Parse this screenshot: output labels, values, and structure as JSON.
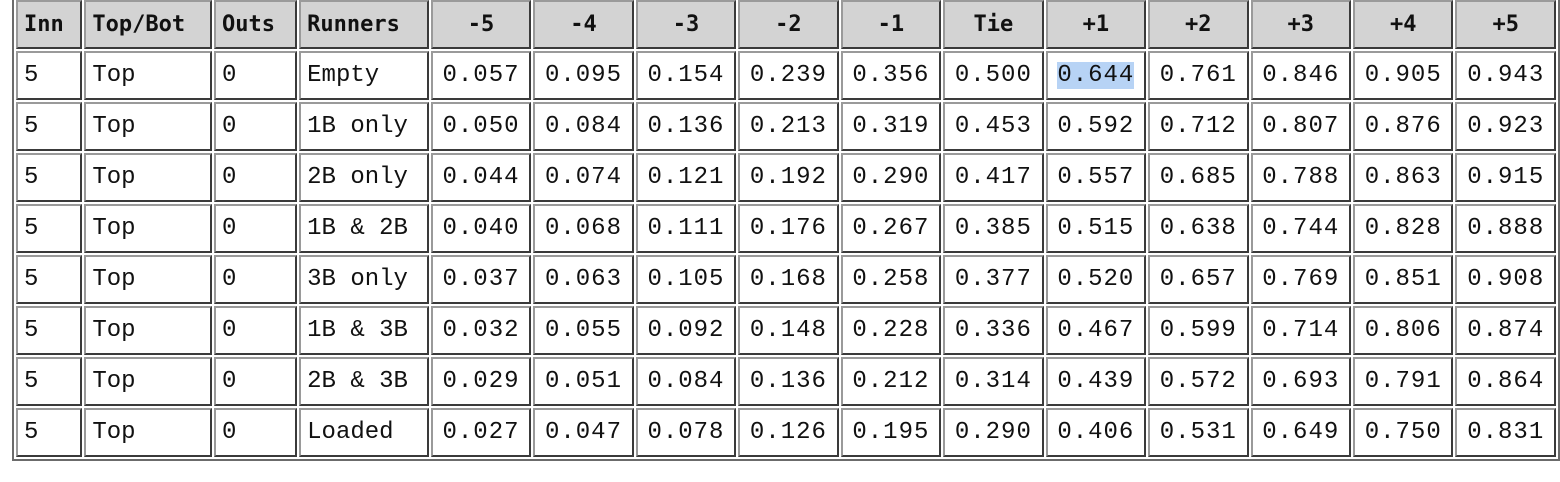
{
  "table": {
    "headers": [
      "Inn",
      "Top/Bot",
      "Outs",
      "Runners",
      "-5",
      "-4",
      "-3",
      "-2",
      "-1",
      "Tie",
      "+1",
      "+2",
      "+3",
      "+4",
      "+5"
    ],
    "rows": [
      [
        "5",
        "Top",
        "0",
        "Empty",
        "0.057",
        "0.095",
        "0.154",
        "0.239",
        "0.356",
        "0.500",
        "0.644",
        "0.761",
        "0.846",
        "0.905",
        "0.943"
      ],
      [
        "5",
        "Top",
        "0",
        "1B only",
        "0.050",
        "0.084",
        "0.136",
        "0.213",
        "0.319",
        "0.453",
        "0.592",
        "0.712",
        "0.807",
        "0.876",
        "0.923"
      ],
      [
        "5",
        "Top",
        "0",
        "2B only",
        "0.044",
        "0.074",
        "0.121",
        "0.192",
        "0.290",
        "0.417",
        "0.557",
        "0.685",
        "0.788",
        "0.863",
        "0.915"
      ],
      [
        "5",
        "Top",
        "0",
        "1B & 2B",
        "0.040",
        "0.068",
        "0.111",
        "0.176",
        "0.267",
        "0.385",
        "0.515",
        "0.638",
        "0.744",
        "0.828",
        "0.888"
      ],
      [
        "5",
        "Top",
        "0",
        "3B only",
        "0.037",
        "0.063",
        "0.105",
        "0.168",
        "0.258",
        "0.377",
        "0.520",
        "0.657",
        "0.769",
        "0.851",
        "0.908"
      ],
      [
        "5",
        "Top",
        "0",
        "1B & 3B",
        "0.032",
        "0.055",
        "0.092",
        "0.148",
        "0.228",
        "0.336",
        "0.467",
        "0.599",
        "0.714",
        "0.806",
        "0.874"
      ],
      [
        "5",
        "Top",
        "0",
        "2B & 3B",
        "0.029",
        "0.051",
        "0.084",
        "0.136",
        "0.212",
        "0.314",
        "0.439",
        "0.572",
        "0.693",
        "0.791",
        "0.864"
      ],
      [
        "5",
        "Top",
        "0",
        "Loaded",
        "0.027",
        "0.047",
        "0.078",
        "0.126",
        "0.195",
        "0.290",
        "0.406",
        "0.531",
        "0.649",
        "0.750",
        "0.831"
      ]
    ],
    "selected_cell": {
      "row": 0,
      "col": 10
    },
    "colors": {
      "header_bg": "#d3d3d3",
      "selection": "#b7d3f5",
      "border": "#6e6e6e"
    }
  }
}
